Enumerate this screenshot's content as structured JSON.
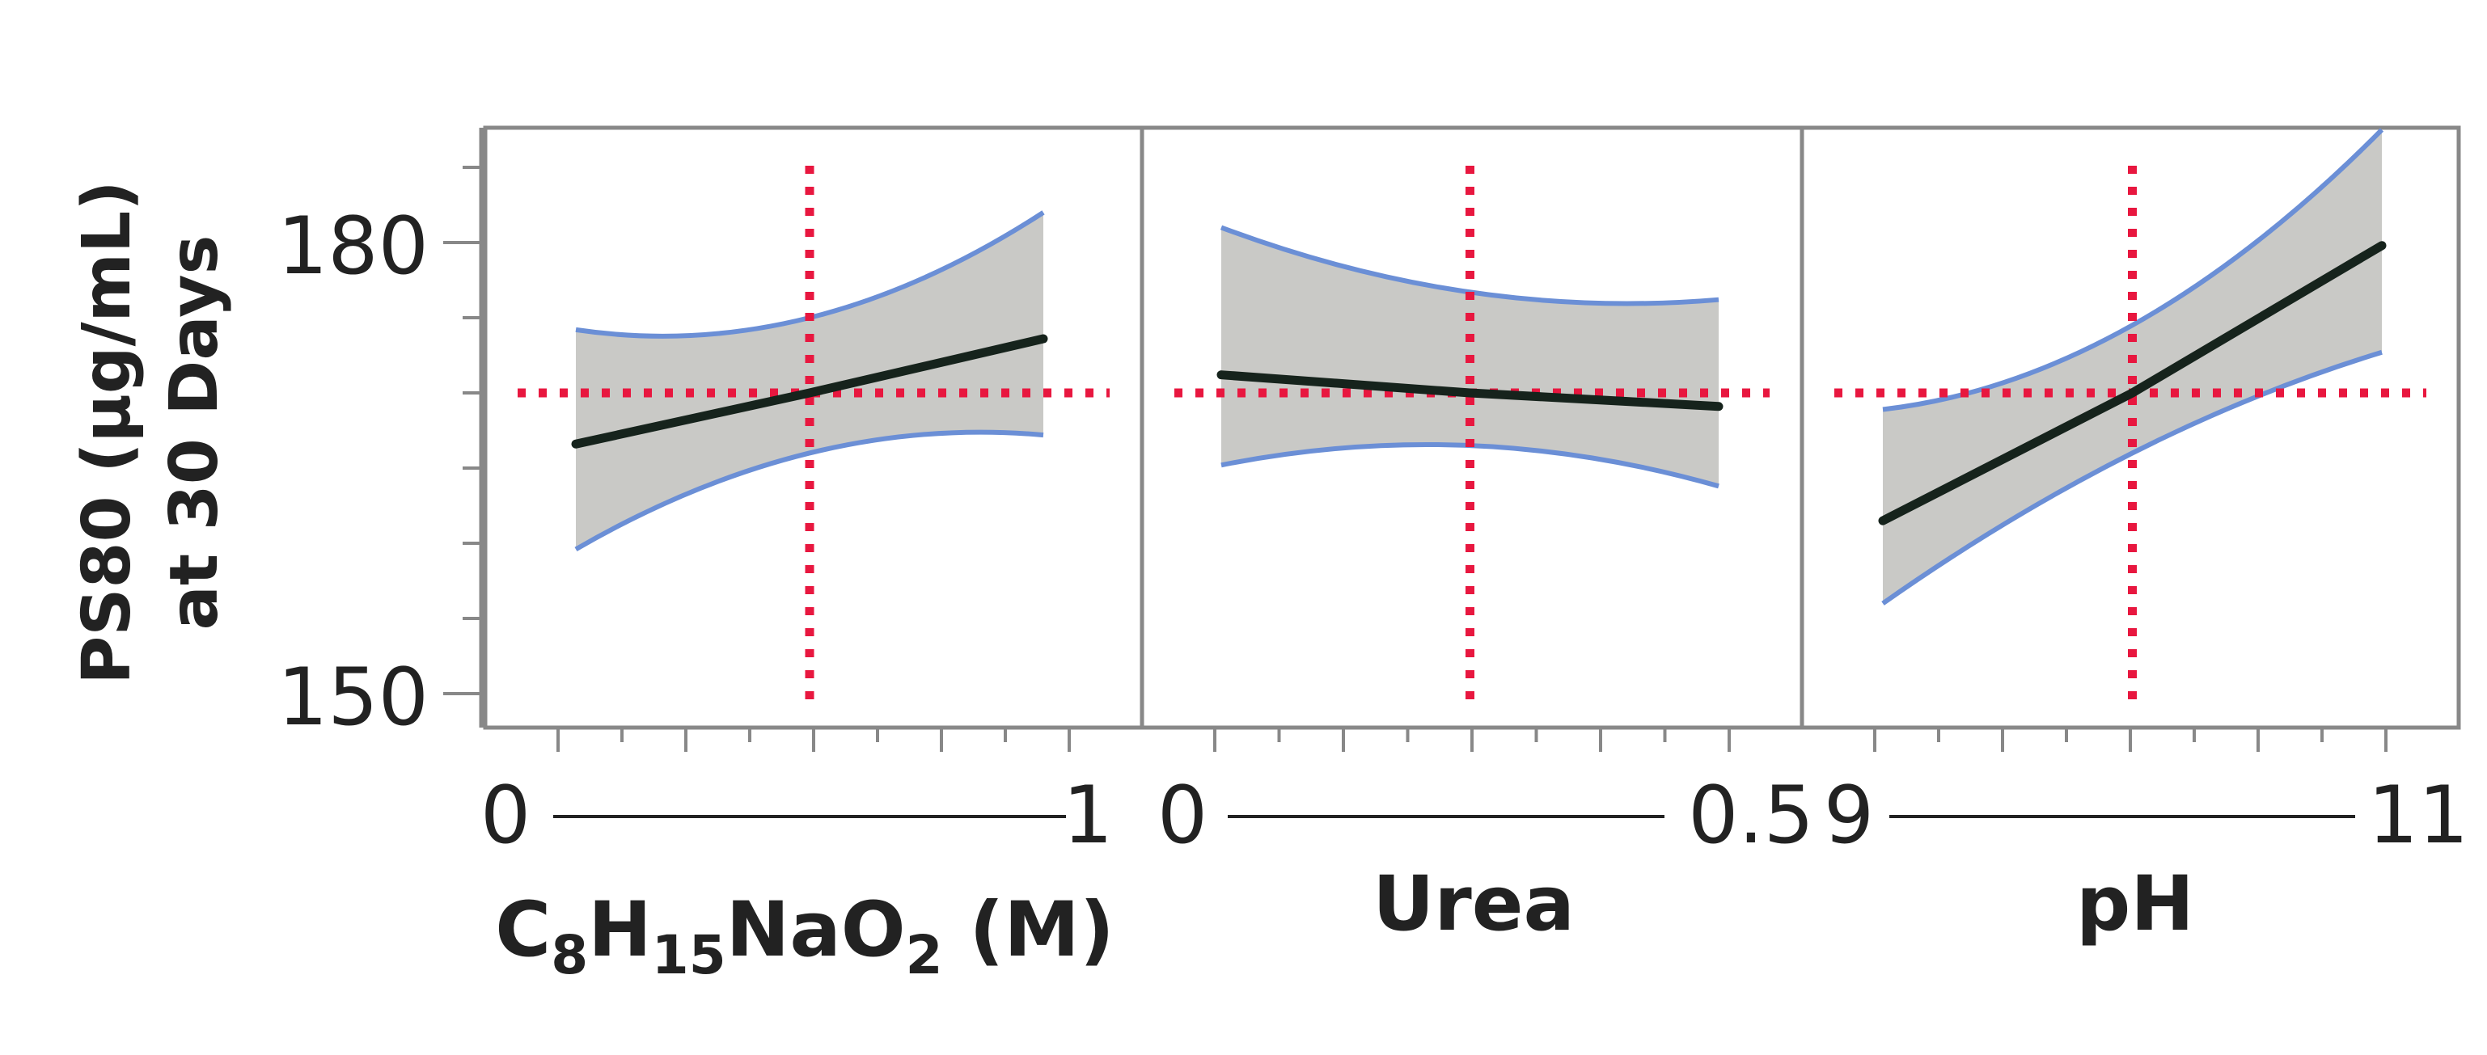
{
  "chart_data": {
    "type": "line",
    "chart_style": "prediction profiler with confidence bands",
    "ylabel_lines": [
      "PS80 (μg/mL)",
      "at 30 Days"
    ],
    "y_ticks": [
      "150",
      "180"
    ],
    "ylim": [
      148.5,
      188
    ],
    "colors": {
      "prediction_line": "#16231c",
      "confidence_band_fill": "#c9c9c6",
      "confidence_band_edge": "#6b8fd6",
      "crosshair": "#e8173f",
      "frame": "#888888"
    },
    "panels": [
      {
        "factor_label": "C₈H₁₅NaO₂ (M)",
        "factor_label_parts": {
          "p1": "C",
          "s1": "8",
          "p2": "H",
          "s2": "15",
          "p3": "NaO",
          "s3": "2",
          "p4": " (M)"
        },
        "x_min_label": "0",
        "x_max_label": "1",
        "xlim": [
          0,
          1
        ],
        "x": [
          0.1,
          0.5,
          0.9
        ],
        "prediction": [
          166.6,
          170.0,
          173.6
        ],
        "lower": [
          159.6,
          166.0,
          167.2
        ],
        "upper": [
          174.2,
          175.0,
          182.0
        ],
        "current_x": 0.5,
        "current_y": 170.0
      },
      {
        "factor_label": "Urea",
        "x_min_label": "0",
        "x_max_label": "0.5",
        "xlim": [
          0,
          0.5
        ],
        "x": [
          0.05,
          0.25,
          0.45
        ],
        "prediction": [
          171.2,
          170.0,
          169.1
        ],
        "lower": [
          165.2,
          166.5,
          163.8
        ],
        "upper": [
          181.0,
          176.7,
          176.2
        ],
        "current_x": 0.25,
        "current_y": 170.0
      },
      {
        "factor_label": "pH",
        "x_min_label": "9",
        "x_max_label": "11",
        "xlim": [
          9,
          11
        ],
        "x": [
          9.2,
          10.0,
          10.8
        ],
        "prediction": [
          161.5,
          170.0,
          179.8
        ],
        "lower": [
          156.0,
          166.0,
          172.7
        ],
        "upper": [
          168.9,
          174.5,
          187.5
        ],
        "current_x": 10.0,
        "current_y": 170.0
      }
    ]
  }
}
